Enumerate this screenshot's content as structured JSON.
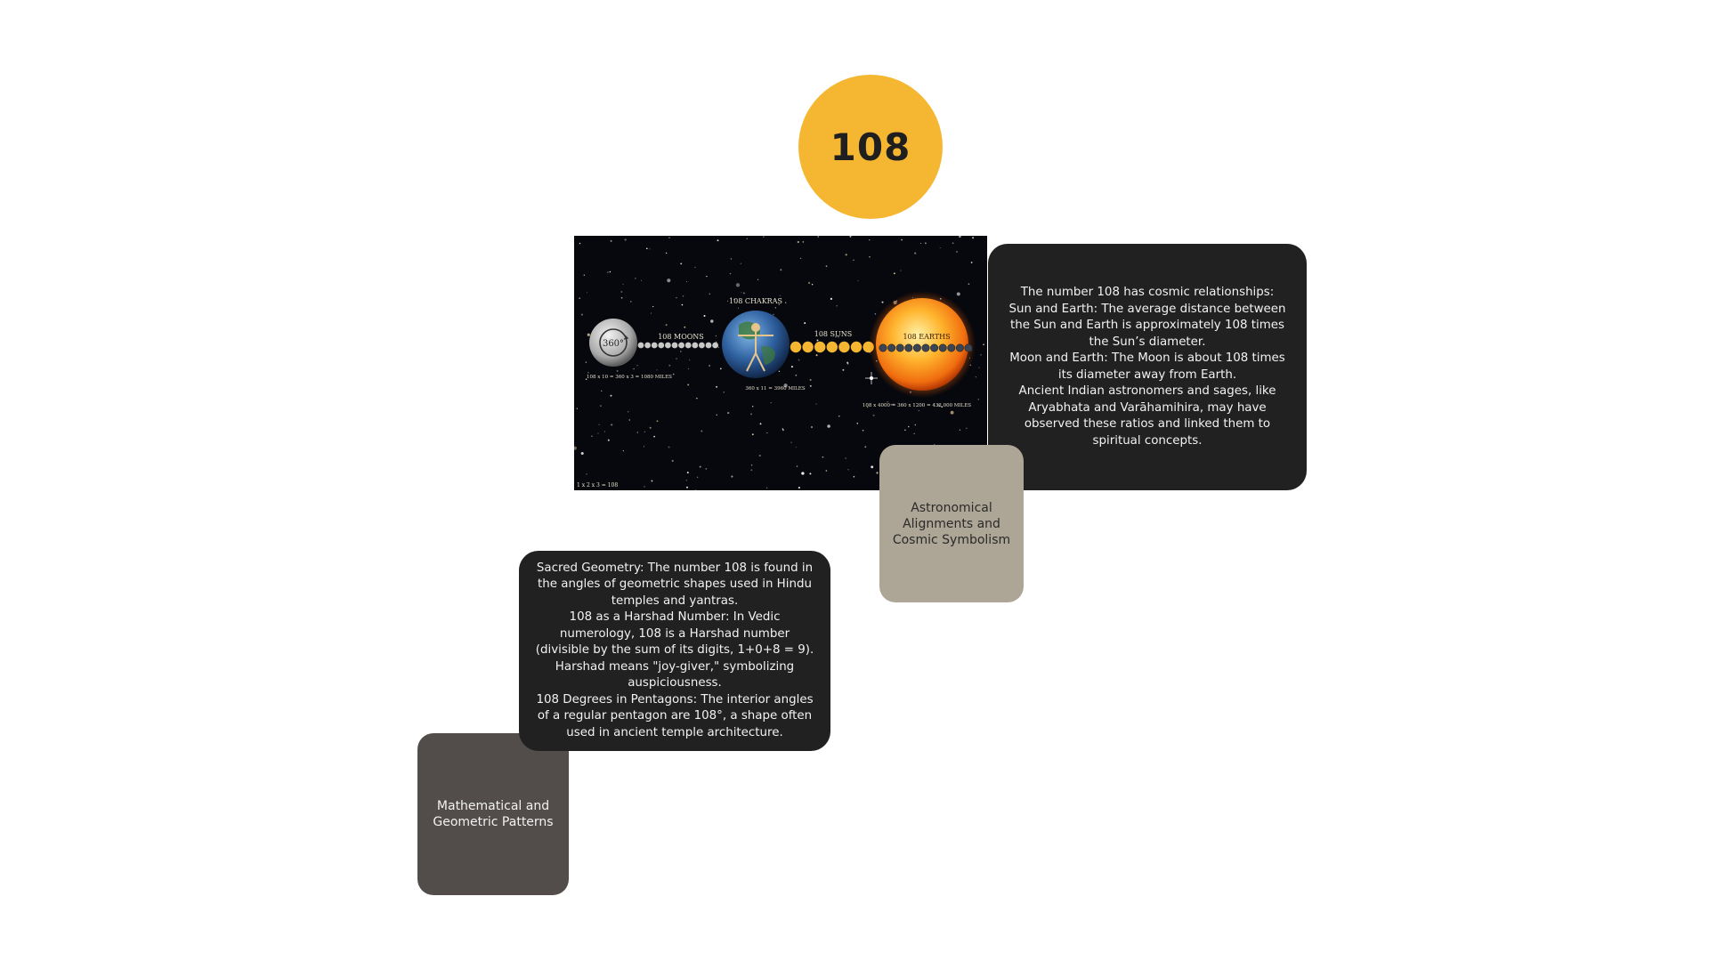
{
  "title_number": "108",
  "image_labels": {
    "degrees": "360°",
    "moons": "108 MOONS",
    "moons_formula": "108 x 10 = 360 x 3 = 1080 MILES",
    "chakras": "108 CHAKRAS",
    "earth_formula": "360 x 11 = 3960 MILES",
    "suns": "108 SUNS",
    "earths": "108 EARTHS",
    "sun_formula": "108 x 4000 = 360 x 1200 = 432,000 MILES",
    "corner_formula": "1 x 2 x 3 = 108"
  },
  "colors": {
    "accent_yellow": "#f5b731",
    "card_dark": "#212121",
    "card_taupe": "#ada696",
    "card_brown": "#524d4a"
  },
  "cosmic_card": {
    "lines": [
      "The number 108  has cosmic relationships:",
      "Sun and Earth: The average distance between the Sun and Earth is approximately 108 times the Sun’s diameter.",
      "Moon and Earth: The Moon is about 108 times its diameter away from Earth.",
      "Ancient Indian astronomers and sages, like Aryabhata and Varāhamihira, may have observed these ratios and linked them to spiritual concepts."
    ]
  },
  "astro_card": {
    "label": "Astronomical Alignments and Cosmic Symbolism"
  },
  "sacred_card": {
    "lines": [
      "Sacred Geometry: The number 108 is found in the angles of geometric shapes used in Hindu temples and yantras.",
      "108 as a Harshad Number: In Vedic numerology, 108 is a Harshad number (divisible by the sum of its digits, 1+0+8 = 9). Harshad means \"joy-giver,\" symbolizing auspiciousness.",
      "108 Degrees in Pentagons: The interior angles of a regular pentagon are 108°, a shape often used in ancient temple architecture."
    ]
  },
  "math_card": {
    "label": "Mathematical and Geometric Patterns"
  }
}
